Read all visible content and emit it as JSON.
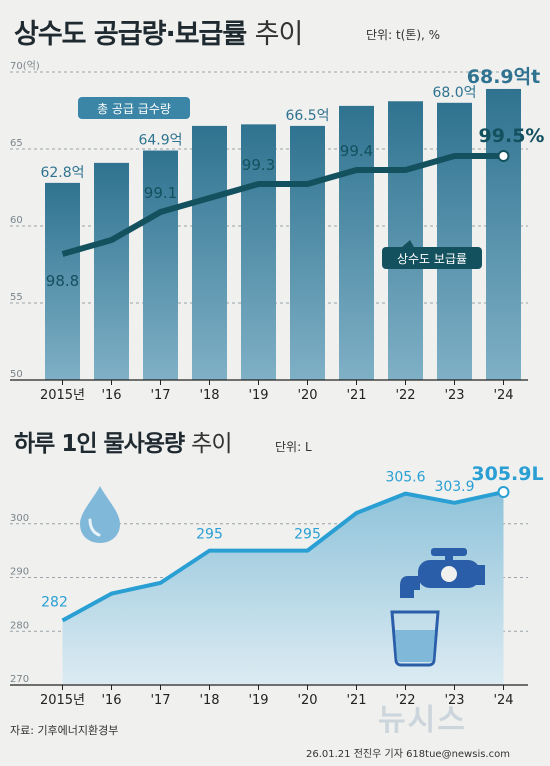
{
  "title1": {
    "bold": "상수도 공급량·보급률",
    "light": "추이"
  },
  "unit1": "단위: t(톤), %",
  "title2": {
    "bold": "하루 1인 물사용량",
    "light": "추이"
  },
  "unit2": "단위: L",
  "source": "자료: 기후에너지환경부",
  "credit": "26.01.21 전진우 기자 618tue@newsis.com",
  "watermark": "뉴시스",
  "colors": {
    "bar": "#2f7390",
    "line": "#14515f",
    "line2": "#2a9fd3",
    "area": "#aed2e3",
    "label_bar": "#2f7390",
    "label_dark": "#14515f",
    "label_blue": "#2a9fd3"
  },
  "chart_data": [
    {
      "type": "bar+line",
      "title": "상수도 공급량·보급률 추이",
      "categories": [
        "2015년",
        "'16",
        "'17",
        "'18",
        "'19",
        "'20",
        "'21",
        "'22",
        "'23",
        "'24"
      ],
      "series": [
        {
          "name": "총 공급 급수량",
          "type": "bar",
          "values": [
            62.8,
            64.1,
            64.9,
            66.5,
            66.6,
            66.5,
            67.8,
            68.1,
            68.0,
            68.9
          ],
          "labels": {
            "0": "62.8억",
            "2": "64.9억",
            "5": "66.5억",
            "8": "68.0억",
            "9": "68.9억t"
          }
        },
        {
          "name": "상수도 보급률",
          "type": "line",
          "values": [
            98.8,
            98.9,
            99.1,
            99.2,
            99.3,
            99.3,
            99.4,
            99.4,
            99.5,
            99.5
          ],
          "labels": {
            "0": "98.8",
            "2": "99.1",
            "4": "99.3",
            "6": "99.4",
            "9": "99.5%"
          }
        }
      ],
      "y_left": {
        "ticks": [
          "70(억)",
          "65",
          "60",
          "55",
          "50"
        ],
        "range": [
          50,
          70
        ]
      },
      "y_right_range": [
        97.9,
        100.1
      ]
    },
    {
      "type": "area",
      "title": "하루 1인 물사용량 추이",
      "categories": [
        "2015년",
        "'16",
        "'17",
        "'18",
        "'19",
        "'20",
        "'21",
        "'22",
        "'23",
        "'24"
      ],
      "values": [
        282.0,
        287.0,
        289.0,
        295.0,
        295.0,
        295.0,
        302.0,
        305.6,
        303.9,
        305.9
      ],
      "labels": {
        "0": "282",
        "3": "295",
        "5": "295",
        "7": "305.6",
        "8": "303.9",
        "9": "305.9L"
      },
      "y_axis": {
        "ticks": [
          "300",
          "290",
          "280",
          "270"
        ],
        "range": [
          270,
          310
        ]
      }
    }
  ]
}
